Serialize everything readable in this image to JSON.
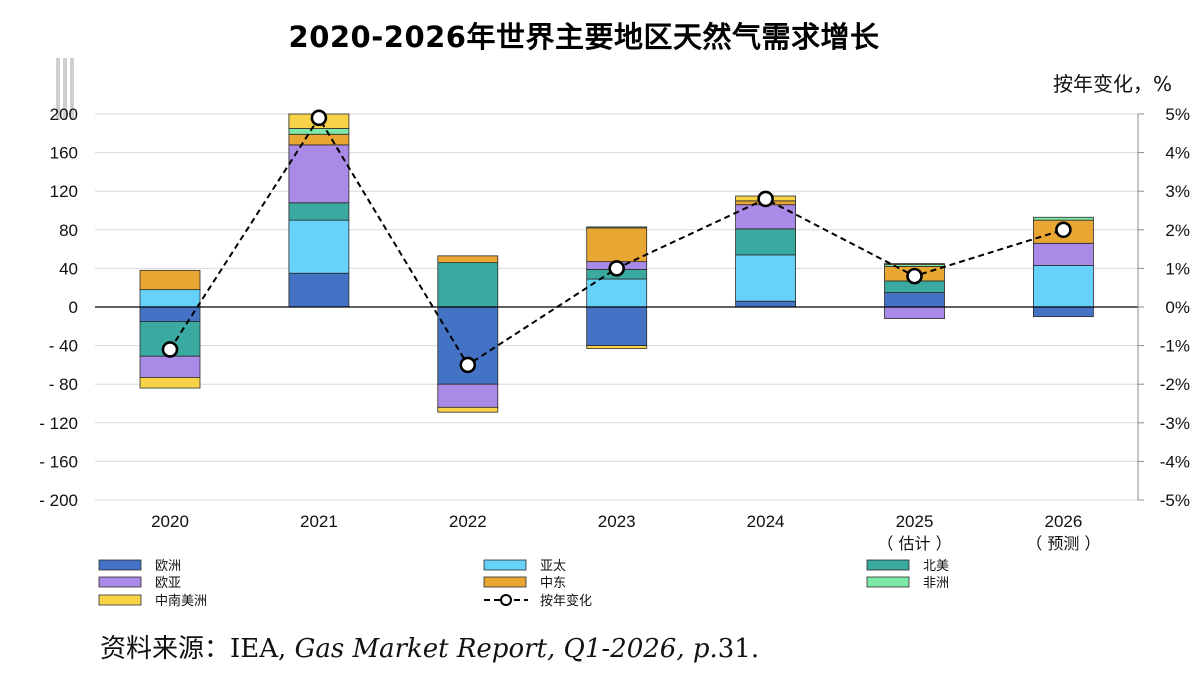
{
  "chart_data": {
    "type": "bar",
    "title": "2020-2026年世界主要地区天然气需求增长",
    "right_axis_label": "按年变化，%",
    "categories": [
      "2020",
      "2021",
      "2022",
      "2023",
      "2024",
      "2025",
      "2026"
    ],
    "category_notes": [
      "",
      "",
      "",
      "",
      "",
      "（ 估计 ）",
      "（ 预测 ）"
    ],
    "ylim": [
      -200,
      200
    ],
    "yticks": [
      200,
      160,
      120,
      80,
      40,
      0,
      -40,
      -80,
      -120,
      -160,
      -200
    ],
    "ytick_labels": [
      "200",
      "160",
      "120",
      "80",
      "40",
      "0",
      "- 40",
      "- 80",
      "- 120",
      "- 160",
      "- 200"
    ],
    "y2lim": [
      -5,
      5
    ],
    "y2ticks": [
      5,
      4,
      3,
      2,
      1,
      0,
      -1,
      -2,
      -3,
      -4,
      -5
    ],
    "y2tick_labels": [
      "5%",
      "4%",
      "3%",
      "2%",
      "1%",
      "0%",
      "-1%",
      "-2%",
      "-3%",
      "-4%",
      "-5%"
    ],
    "series": [
      {
        "name": "欧洲",
        "color": "#4472C4",
        "values": [
          -15,
          35,
          -80,
          -40,
          6,
          15,
          -10
        ]
      },
      {
        "name": "亚太",
        "color": "#66D2FA",
        "values": [
          18,
          55,
          0,
          29,
          48,
          0,
          43
        ]
      },
      {
        "name": "北美",
        "color": "#3AA99F",
        "values": [
          -36,
          18,
          46,
          10,
          27,
          12,
          0
        ]
      },
      {
        "name": "欧亚",
        "color": "#A98AE6",
        "values": [
          -22,
          60,
          -24,
          8,
          25,
          -12,
          23
        ]
      },
      {
        "name": "中东",
        "color": "#E8A633",
        "values": [
          20,
          11,
          7,
          35,
          4,
          15,
          24
        ]
      },
      {
        "name": "非洲",
        "color": "#7EE8A8",
        "values": [
          0,
          6,
          0,
          1,
          0,
          2,
          3
        ]
      },
      {
        "name": "中南美洲",
        "color": "#F8D348",
        "values": [
          -11,
          15,
          -5,
          -3,
          5,
          1,
          0
        ]
      }
    ],
    "line_series": {
      "name": "按年变化",
      "axis": "right",
      "values": [
        -1.1,
        4.9,
        -1.5,
        1.0,
        2.8,
        0.8,
        2.0
      ]
    },
    "legend": {
      "placement": "bottom"
    }
  },
  "source": {
    "prefix": "资料来源：IEA, ",
    "report": "Gas Market Report, Q1-2026, p.",
    "page": "31."
  }
}
